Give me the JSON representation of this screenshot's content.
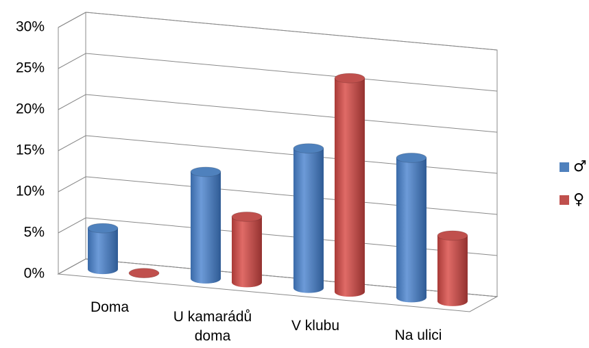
{
  "chart_data": {
    "type": "bar3d",
    "categories": [
      "Doma",
      "U kamarádů doma",
      "V klubu",
      "Na ulici"
    ],
    "series": [
      {
        "name": "♂",
        "color": "#4f81bd",
        "values": [
          5,
          13,
          17,
          17
        ]
      },
      {
        "name": "♀",
        "color": "#c0504d",
        "values": [
          0,
          8,
          26,
          8
        ]
      }
    ],
    "ylim": [
      0,
      30
    ],
    "yticks": [
      {
        "value": 0,
        "label": "0%"
      },
      {
        "value": 5,
        "label": "5%"
      },
      {
        "value": 10,
        "label": "10%"
      },
      {
        "value": 15,
        "label": "15%"
      },
      {
        "value": 20,
        "label": "20%"
      },
      {
        "value": 25,
        "label": "25%"
      },
      {
        "value": 30,
        "label": "30%"
      }
    ],
    "grid": true,
    "legend": "right"
  }
}
